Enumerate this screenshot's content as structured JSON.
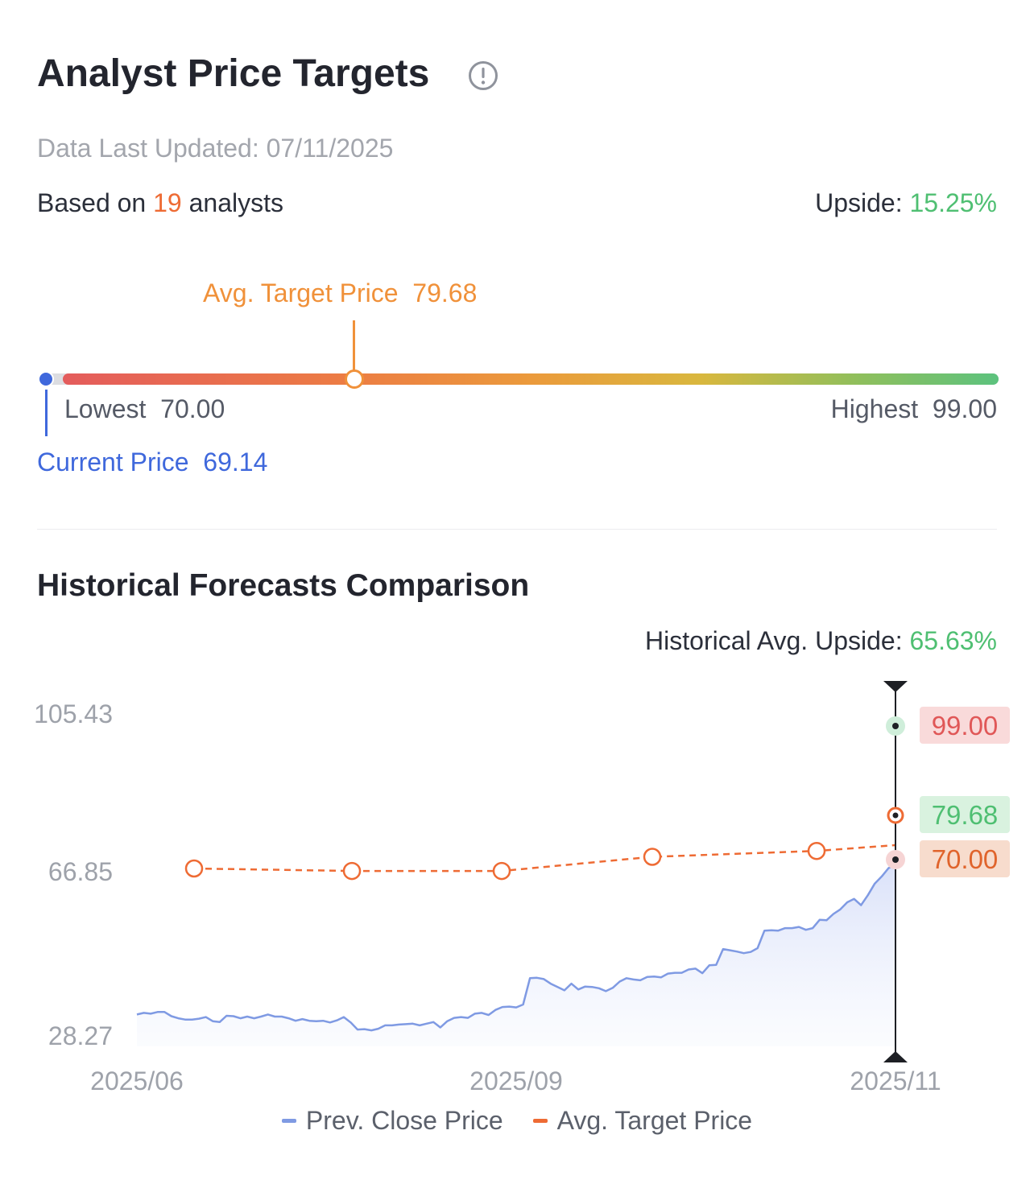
{
  "header": {
    "title": "Analyst Price Targets",
    "info_icon": "info-circle-icon",
    "updated_label": "Data Last Updated:",
    "updated_date": "07/11/2025",
    "based_prefix": "Based on",
    "analyst_count": "19",
    "based_suffix": "analysts",
    "upside_label": "Upside:",
    "upside_value": "15.25%"
  },
  "target_range": {
    "avg_label": "Avg. Target Price",
    "avg_value": "79.68",
    "lowest_label": "Lowest",
    "lowest_value": "70.00",
    "highest_label": "Highest",
    "highest_value": "99.00",
    "current_label": "Current Price",
    "current_value": "69.14"
  },
  "history": {
    "title": "Historical Forecasts Comparison",
    "avg_upside_label": "Historical Avg. Upside:",
    "avg_upside_value": "65.63%"
  },
  "colors": {
    "close_line": "#7f9ae3",
    "target_line": "#ee6b34",
    "high_tag_bg": "#f9dada",
    "high_tag_text": "#e05757",
    "avg_tag_bg": "#d9f2df",
    "avg_tag_text": "#4fbf72",
    "low_tag_bg": "#f7dccd",
    "low_tag_text": "#e0642c"
  },
  "chart_data": {
    "type": "line",
    "y_ticks": [
      "105.43",
      "66.85",
      "28.27"
    ],
    "ylim": [
      28.27,
      105.43
    ],
    "x_ticks": [
      "2025/06",
      "2025/09",
      "2025/11"
    ],
    "legend": [
      "Prev. Close Price",
      "Avg. Target Price"
    ],
    "legend_placement": "bottom",
    "series": [
      {
        "name": "Prev. Close Price",
        "values": [
          33.2,
          33.6,
          33.4,
          33.8,
          33.8,
          32.8,
          32.3,
          32.0,
          32.0,
          32.2,
          32.6,
          31.6,
          31.4,
          32.9,
          32.8,
          32.3,
          32.7,
          32.3,
          32.7,
          33.2,
          32.7,
          32.7,
          32.3,
          31.7,
          32.1,
          31.7,
          31.6,
          31.7,
          31.3,
          31.8,
          32.6,
          31.3,
          29.6,
          29.7,
          29.4,
          29.8,
          30.6,
          30.6,
          30.8,
          30.9,
          31.0,
          30.6,
          31.0,
          31.4,
          30.1,
          31.6,
          32.4,
          32.6,
          32.4,
          33.4,
          33.6,
          33.1,
          34.3,
          35.0,
          35.1,
          34.9,
          35.6,
          41.9,
          42.0,
          41.7,
          40.6,
          39.8,
          39.0,
          40.6,
          39.2,
          39.9,
          39.8,
          39.5,
          38.8,
          39.6,
          41.1,
          41.9,
          41.6,
          41.4,
          42.2,
          42.3,
          42.1,
          43.0,
          43.2,
          43.2,
          44.0,
          44.2,
          43.1,
          45.0,
          45.1,
          48.9,
          48.6,
          48.3,
          47.9,
          48.2,
          49.1,
          53.3,
          53.4,
          53.3,
          53.9,
          53.9,
          54.2,
          53.5,
          53.9,
          55.9,
          55.8,
          57.3,
          58.4,
          60.1,
          60.9,
          59.4,
          61.8,
          64.6,
          66.3,
          68.3,
          69.14
        ]
      },
      {
        "name": "Avg. Target Price",
        "values": [
          68.2,
          67.6,
          67.6,
          71.0,
          72.4,
          73.8
        ]
      }
    ],
    "crosshair_values": {
      "highest": "99.00",
      "average": "79.68",
      "lowest": "70.00"
    }
  }
}
